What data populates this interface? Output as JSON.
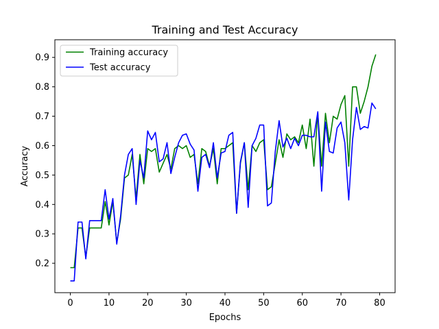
{
  "chart_data": {
    "type": "line",
    "title": "Training and Test Accuracy",
    "xlabel": "Epochs",
    "ylabel": "Accuracy",
    "xlim": [
      -4,
      84
    ],
    "ylim": [
      0.1,
      0.96
    ],
    "xticks": [
      0,
      10,
      20,
      30,
      40,
      50,
      60,
      70,
      80
    ],
    "yticks": [
      0.2,
      0.3,
      0.4,
      0.5,
      0.6,
      0.7,
      0.8,
      0.9
    ],
    "legend_position": "top-left",
    "grid": false,
    "x": [
      0,
      1,
      2,
      3,
      4,
      5,
      6,
      7,
      8,
      9,
      10,
      11,
      12,
      13,
      14,
      15,
      16,
      17,
      18,
      19,
      20,
      21,
      22,
      23,
      24,
      25,
      26,
      27,
      28,
      29,
      30,
      31,
      32,
      33,
      34,
      35,
      36,
      37,
      38,
      39,
      40,
      41,
      42,
      43,
      44,
      45,
      46,
      47,
      48,
      49,
      50,
      51,
      52,
      53,
      54,
      55,
      56,
      57,
      58,
      59,
      60,
      61,
      62,
      63,
      64,
      65,
      66,
      67,
      68,
      69,
      70,
      71,
      72,
      73,
      74,
      75,
      76,
      77,
      78,
      79
    ],
    "series": [
      {
        "name": "Training accuracy",
        "color": "#008000",
        "values": [
          0.185,
          0.185,
          0.32,
          0.32,
          0.22,
          0.32,
          0.32,
          0.32,
          0.32,
          0.41,
          0.33,
          0.41,
          0.27,
          0.35,
          0.49,
          0.5,
          0.57,
          0.42,
          0.57,
          0.47,
          0.59,
          0.58,
          0.59,
          0.51,
          0.54,
          0.57,
          0.52,
          0.59,
          0.6,
          0.59,
          0.6,
          0.56,
          0.57,
          0.47,
          0.59,
          0.58,
          0.53,
          0.59,
          0.47,
          0.59,
          0.59,
          0.6,
          0.61,
          0.37,
          0.54,
          0.61,
          0.45,
          0.6,
          0.58,
          0.61,
          0.62,
          0.45,
          0.46,
          0.54,
          0.62,
          0.56,
          0.64,
          0.62,
          0.63,
          0.61,
          0.67,
          0.59,
          0.69,
          0.53,
          0.71,
          0.53,
          0.71,
          0.61,
          0.7,
          0.69,
          0.74,
          0.77,
          0.53,
          0.8,
          0.8,
          0.71,
          0.75,
          0.8,
          0.87,
          0.91
        ]
      },
      {
        "name": "Test accuracy",
        "color": "#0000ff",
        "values": [
          0.14,
          0.14,
          0.34,
          0.34,
          0.215,
          0.345,
          0.345,
          0.345,
          0.345,
          0.45,
          0.35,
          0.42,
          0.265,
          0.36,
          0.5,
          0.57,
          0.59,
          0.4,
          0.55,
          0.49,
          0.65,
          0.62,
          0.645,
          0.545,
          0.555,
          0.61,
          0.505,
          0.56,
          0.61,
          0.635,
          0.64,
          0.605,
          0.585,
          0.445,
          0.56,
          0.57,
          0.525,
          0.61,
          0.49,
          0.575,
          0.58,
          0.635,
          0.645,
          0.37,
          0.545,
          0.61,
          0.39,
          0.6,
          0.625,
          0.67,
          0.67,
          0.395,
          0.405,
          0.58,
          0.685,
          0.595,
          0.625,
          0.59,
          0.625,
          0.6,
          0.635,
          0.635,
          0.63,
          0.63,
          0.715,
          0.445,
          0.68,
          0.58,
          0.575,
          0.66,
          0.68,
          0.61,
          0.415,
          0.62,
          0.73,
          0.655,
          0.665,
          0.66,
          0.745,
          0.725
        ]
      }
    ]
  }
}
